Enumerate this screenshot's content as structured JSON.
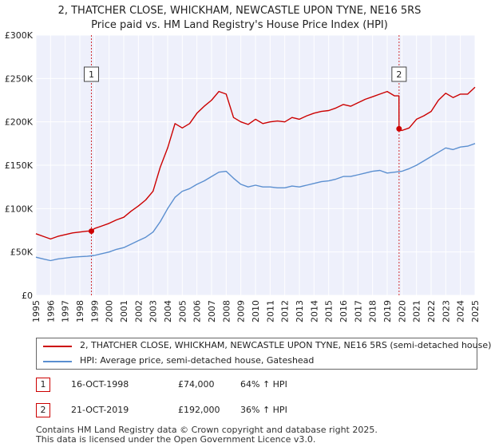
{
  "chart_data": {
    "type": "line",
    "title": "2, THATCHER CLOSE, WHICKHAM, NEWCASTLE UPON TYNE, NE16 5RS",
    "subtitle": "Price paid vs. HM Land Registry's House Price Index (HPI)",
    "xlabel": "",
    "ylabel": "",
    "xlim": [
      1995,
      2025
    ],
    "ylim": [
      0,
      300000
    ],
    "y_ticks": [
      0,
      50000,
      100000,
      150000,
      200000,
      250000,
      300000
    ],
    "y_tick_labels": [
      "£0",
      "£50K",
      "£100K",
      "£150K",
      "£200K",
      "£250K",
      "£300K"
    ],
    "x_ticks": [
      1995,
      1996,
      1997,
      1998,
      1999,
      2000,
      2001,
      2002,
      2003,
      2004,
      2005,
      2006,
      2007,
      2008,
      2009,
      2010,
      2011,
      2012,
      2013,
      2014,
      2015,
      2016,
      2017,
      2018,
      2019,
      2020,
      2021,
      2022,
      2023,
      2024,
      2025
    ],
    "x_tick_labels": [
      "1995",
      "1996",
      "1997",
      "1998",
      "1999",
      "2000",
      "2001",
      "2002",
      "2003",
      "2004",
      "2005",
      "2006",
      "2007",
      "2008",
      "2009",
      "2010",
      "2011",
      "2012",
      "2013",
      "2014",
      "2015",
      "2016",
      "2017",
      "2018",
      "2019",
      "2020",
      "2021",
      "2022",
      "2023",
      "2024",
      "2025"
    ],
    "grid": true,
    "series": [
      {
        "name": "2, THATCHER CLOSE, WHICKHAM, NEWCASTLE UPON TYNE, NE16 5RS (semi-detached house)",
        "color": "#cc0000",
        "x": [
          1995.0,
          1995.5,
          1996.0,
          1996.5,
          1997.0,
          1997.5,
          1998.0,
          1998.5,
          1998.79,
          1999.0,
          1999.5,
          2000.0,
          2000.5,
          2001.0,
          2001.5,
          2002.0,
          2002.5,
          2003.0,
          2003.5,
          2004.0,
          2004.5,
          2005.0,
          2005.5,
          2006.0,
          2006.5,
          2007.0,
          2007.5,
          2008.0,
          2008.5,
          2009.0,
          2009.5,
          2010.0,
          2010.5,
          2011.0,
          2011.5,
          2012.0,
          2012.5,
          2013.0,
          2013.5,
          2014.0,
          2014.5,
          2015.0,
          2015.5,
          2016.0,
          2016.5,
          2017.0,
          2017.5,
          2018.0,
          2018.5,
          2019.0,
          2019.5,
          2019.8,
          2019.81,
          2020.0,
          2020.5,
          2021.0,
          2021.5,
          2022.0,
          2022.5,
          2023.0,
          2023.5,
          2024.0,
          2024.5,
          2025.0
        ],
        "values": [
          71000,
          68000,
          65000,
          68000,
          70000,
          72000,
          73000,
          74000,
          74000,
          77000,
          80000,
          83000,
          87000,
          90000,
          97000,
          103000,
          110000,
          120000,
          148000,
          170000,
          198000,
          193000,
          198000,
          210000,
          218000,
          225000,
          235000,
          232000,
          205000,
          200000,
          197000,
          203000,
          198000,
          200000,
          201000,
          200000,
          205000,
          203000,
          207000,
          210000,
          212000,
          213000,
          216000,
          220000,
          218000,
          222000,
          226000,
          229000,
          232000,
          235000,
          230000,
          230000,
          192000,
          190000,
          193000,
          203000,
          207000,
          212000,
          225000,
          233000,
          228000,
          232000,
          232000,
          240000
        ]
      },
      {
        "name": "HPI: Average price, semi-detached house, Gateshead",
        "color": "#5b8fd0",
        "x": [
          1995.0,
          1995.5,
          1996.0,
          1996.5,
          1997.0,
          1997.5,
          1998.0,
          1998.5,
          1999.0,
          1999.5,
          2000.0,
          2000.5,
          2001.0,
          2001.5,
          2002.0,
          2002.5,
          2003.0,
          2003.5,
          2004.0,
          2004.5,
          2005.0,
          2005.5,
          2006.0,
          2006.5,
          2007.0,
          2007.5,
          2008.0,
          2008.5,
          2009.0,
          2009.5,
          2010.0,
          2010.5,
          2011.0,
          2011.5,
          2012.0,
          2012.5,
          2013.0,
          2013.5,
          2014.0,
          2014.5,
          2015.0,
          2015.5,
          2016.0,
          2016.5,
          2017.0,
          2017.5,
          2018.0,
          2018.5,
          2019.0,
          2019.5,
          2020.0,
          2020.5,
          2021.0,
          2021.5,
          2022.0,
          2022.5,
          2023.0,
          2023.5,
          2024.0,
          2024.5,
          2025.0
        ],
        "values": [
          44000,
          42000,
          40000,
          42000,
          43000,
          44000,
          44500,
          45000,
          46000,
          48000,
          50000,
          53000,
          55000,
          59000,
          63000,
          67000,
          73000,
          85000,
          100000,
          113000,
          120000,
          123000,
          128000,
          132000,
          137000,
          142000,
          143000,
          135000,
          128000,
          125000,
          127000,
          125000,
          125000,
          124000,
          124000,
          126000,
          125000,
          127000,
          129000,
          131000,
          132000,
          134000,
          137000,
          137000,
          139000,
          141000,
          143000,
          144000,
          141000,
          142000,
          143000,
          146000,
          150000,
          155000,
          160000,
          165000,
          170000,
          168000,
          171000,
          172000,
          175000
        ]
      }
    ],
    "markers": [
      {
        "label": "1",
        "x": 1998.79,
        "value": 74000
      },
      {
        "label": "2",
        "x": 2019.81,
        "value": 192000
      }
    ]
  },
  "legend": {
    "property_label": "2, THATCHER CLOSE, WHICKHAM, NEWCASTLE UPON TYNE, NE16 5RS (semi-detached house)",
    "hpi_label": "HPI: Average price, semi-detached house, Gateshead",
    "property_color": "#cc0000",
    "hpi_color": "#5b8fd0"
  },
  "sales": [
    {
      "label": "1",
      "date": "16-OCT-1998",
      "price": "£74,000",
      "hpi": "64% ↑ HPI"
    },
    {
      "label": "2",
      "date": "21-OCT-2019",
      "price": "£192,000",
      "hpi": "36% ↑ HPI"
    }
  ],
  "footer": {
    "line1": "Contains HM Land Registry data © Crown copyright and database right 2025.",
    "line2": "This data is licensed under the Open Government Licence v3.0."
  },
  "colors": {
    "plot_bg": "#eef0fb",
    "grid": "#ffffff",
    "accent": "#cc0000"
  }
}
